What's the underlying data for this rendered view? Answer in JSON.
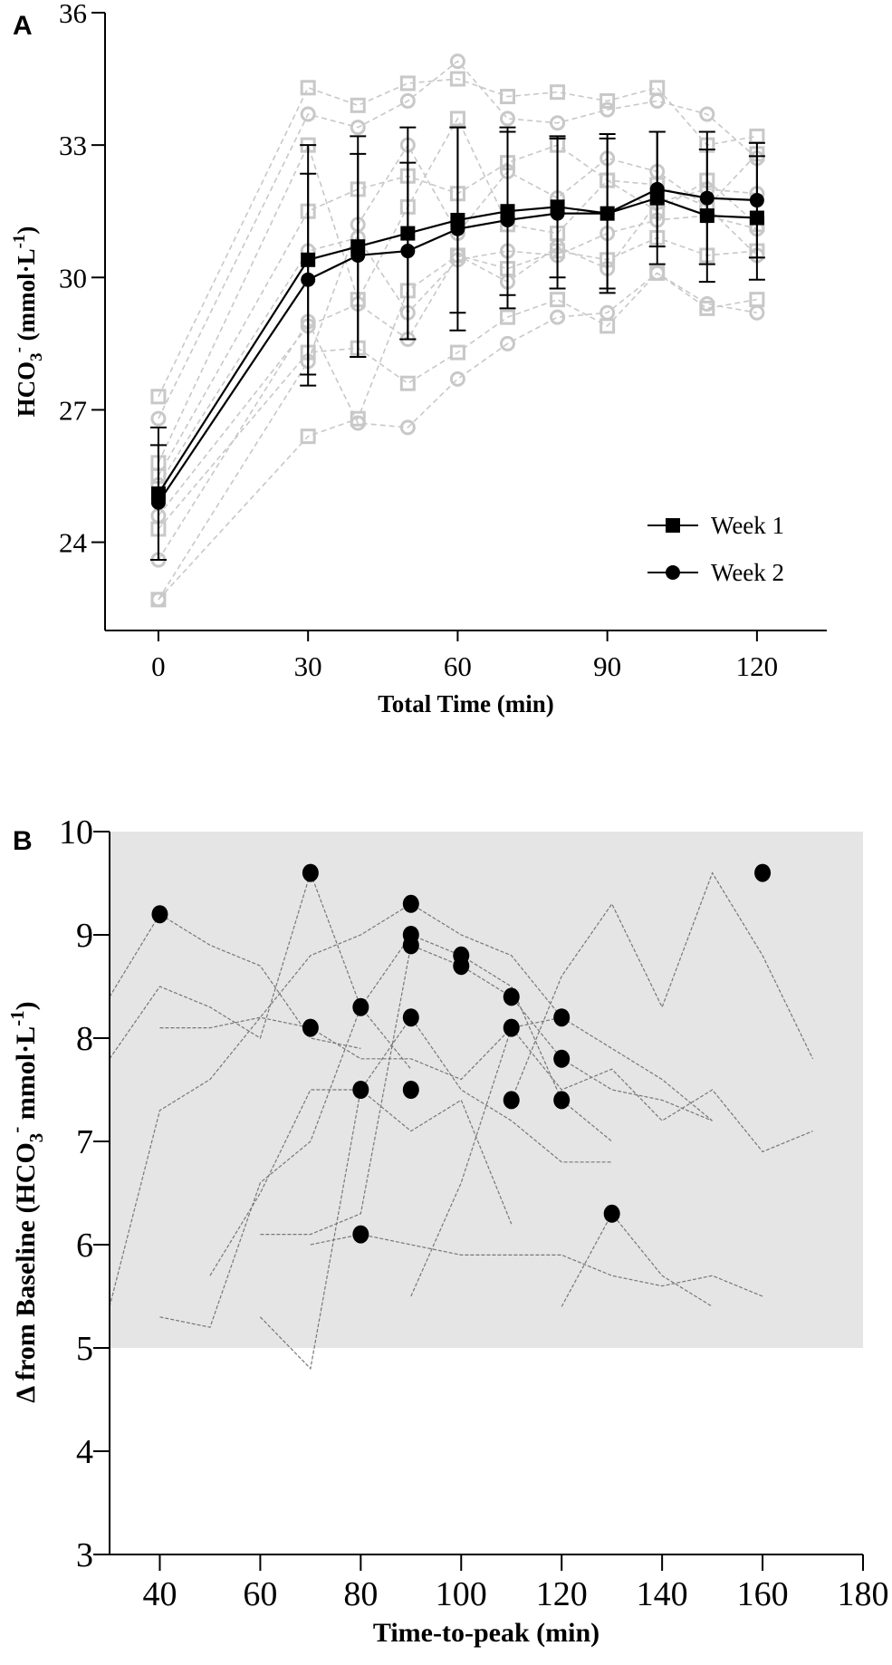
{
  "chart_data": [
    {
      "panel": "A",
      "type": "line",
      "xlabel": "Total Time (min)",
      "ylabel": "HCO3- (mmol·L-1)",
      "ylabel_parts": {
        "main": "HCO",
        "sub": "3",
        "sup": "-",
        "unit": " (mmol·L",
        "unit_sup": "-1",
        "close": ")"
      },
      "xlim": [
        -10.7,
        134
      ],
      "ylim": [
        22,
        36
      ],
      "xticks": [
        0,
        30,
        60,
        90,
        120
      ],
      "yticks": [
        24,
        27,
        30,
        33,
        36
      ],
      "legend_position": "lower-right",
      "x": [
        0,
        30,
        40,
        50,
        60,
        70,
        80,
        90,
        100,
        110,
        120
      ],
      "series": [
        {
          "name": "Week 1",
          "marker": "square",
          "values": [
            25.1,
            30.4,
            30.7,
            31.0,
            31.3,
            31.5,
            31.6,
            31.45,
            31.8,
            31.4,
            31.35
          ],
          "sd": [
            1.5,
            2.6,
            2.5,
            2.4,
            2.1,
            1.9,
            1.6,
            1.8,
            1.5,
            1.5,
            1.4
          ]
        },
        {
          "name": "Week 2",
          "marker": "circle",
          "values": [
            24.9,
            29.95,
            30.5,
            30.6,
            31.1,
            31.3,
            31.45,
            31.45,
            32.0,
            31.8,
            31.75
          ],
          "sd": [
            1.3,
            2.4,
            2.3,
            2.0,
            2.3,
            2.0,
            1.7,
            1.7,
            1.3,
            1.5,
            1.3
          ]
        }
      ],
      "individual_traces_approx": [
        {
          "marker": "square",
          "values": [
            27.3,
            34.3,
            33.9,
            34.4,
            34.5,
            34.1,
            34.2,
            34.0,
            34.3,
            33.0,
            33.2
          ]
        },
        {
          "marker": "square",
          "values": [
            25.5,
            31.5,
            32.0,
            32.3,
            31.9,
            32.6,
            33.0,
            32.2,
            32.1,
            31.6,
            32.8
          ]
        },
        {
          "marker": "square",
          "values": [
            24.3,
            28.3,
            28.4,
            27.6,
            28.3,
            29.1,
            29.5,
            28.9,
            30.1,
            29.3,
            29.5
          ]
        },
        {
          "marker": "square",
          "values": [
            22.7,
            26.4,
            26.8,
            29.7,
            30.5,
            30.2,
            30.6,
            30.4,
            30.9,
            30.5,
            30.6
          ]
        },
        {
          "marker": "square",
          "values": [
            25.8,
            33.0,
            29.5,
            31.6,
            33.6,
            31.2,
            31.0,
            32.2,
            31.5,
            32.2,
            31.2
          ]
        },
        {
          "marker": "circle",
          "values": [
            26.8,
            33.7,
            33.4,
            34.0,
            34.9,
            33.6,
            33.5,
            33.8,
            34.0,
            33.7,
            32.7
          ]
        },
        {
          "marker": "circle",
          "values": [
            25.3,
            30.6,
            30.9,
            29.2,
            30.4,
            30.6,
            30.5,
            31.0,
            31.3,
            31.4,
            31.1
          ]
        },
        {
          "marker": "circle",
          "values": [
            23.6,
            29.0,
            26.7,
            26.6,
            27.7,
            28.5,
            29.1,
            29.2,
            30.1,
            29.4,
            29.2
          ]
        },
        {
          "marker": "circle",
          "values": [
            24.6,
            28.9,
            29.4,
            28.6,
            30.5,
            29.9,
            30.7,
            30.2,
            31.7,
            32.0,
            31.9
          ]
        },
        {
          "marker": "circle",
          "values": [
            22.7,
            28.1,
            31.2,
            33.0,
            31.0,
            32.4,
            31.8,
            32.7,
            32.4,
            31.6,
            30.5
          ]
        }
      ]
    },
    {
      "panel": "B",
      "type": "scatter",
      "xlabel": "Time-to-peak (min)",
      "ylabel": "Δ from Baseline (HCO3- mmol·L-1)",
      "ylabel_parts": {
        "main": "Δ from Baseline (HCO",
        "sub": "3",
        "sup": "-",
        "unit": " mmol·L",
        "unit_sup": "-1",
        "close": ")"
      },
      "xlim": [
        30,
        180
      ],
      "ylim": [
        3,
        10
      ],
      "xticks": [
        40,
        60,
        80,
        100,
        120,
        140,
        160,
        180
      ],
      "yticks": [
        3,
        4,
        5,
        6,
        7,
        8,
        9,
        10
      ],
      "shaded_band": [
        5,
        10
      ],
      "peaks": [
        {
          "x": 40,
          "y": 9.2
        },
        {
          "x": 70,
          "y": 9.6
        },
        {
          "x": 70,
          "y": 8.1
        },
        {
          "x": 80,
          "y": 8.3
        },
        {
          "x": 80,
          "y": 7.5
        },
        {
          "x": 80,
          "y": 6.1
        },
        {
          "x": 90,
          "y": 9.3
        },
        {
          "x": 90,
          "y": 9.0
        },
        {
          "x": 90,
          "y": 8.9
        },
        {
          "x": 90,
          "y": 8.2
        },
        {
          "x": 90,
          "y": 7.5
        },
        {
          "x": 100,
          "y": 8.8
        },
        {
          "x": 100,
          "y": 8.7
        },
        {
          "x": 110,
          "y": 8.4
        },
        {
          "x": 110,
          "y": 8.1
        },
        {
          "x": 110,
          "y": 7.4
        },
        {
          "x": 120,
          "y": 8.2
        },
        {
          "x": 120,
          "y": 7.8
        },
        {
          "x": 120,
          "y": 7.4
        },
        {
          "x": 130,
          "y": 6.3
        },
        {
          "x": 160,
          "y": 9.6
        }
      ],
      "individual_traces_approx": [
        [
          [
            30,
            8.4
          ],
          [
            40,
            9.2
          ],
          [
            50,
            8.9
          ],
          [
            60,
            8.7
          ],
          [
            70,
            8.0
          ],
          [
            80,
            7.9
          ]
        ],
        [
          [
            30,
            7.8
          ],
          [
            40,
            8.5
          ],
          [
            50,
            8.3
          ],
          [
            60,
            8.0
          ],
          [
            70,
            9.6
          ],
          [
            80,
            8.3
          ],
          [
            90,
            7.7
          ]
        ],
        [
          [
            30,
            5.4
          ],
          [
            40,
            7.3
          ],
          [
            50,
            7.6
          ],
          [
            60,
            8.2
          ],
          [
            70,
            8.8
          ],
          [
            80,
            9.0
          ],
          [
            90,
            9.3
          ],
          [
            100,
            9.0
          ],
          [
            110,
            8.8
          ],
          [
            120,
            8.2
          ]
        ],
        [
          [
            40,
            8.1
          ],
          [
            50,
            8.1
          ],
          [
            60,
            8.2
          ],
          [
            70,
            8.1
          ],
          [
            80,
            7.8
          ],
          [
            90,
            7.8
          ],
          [
            100,
            7.6
          ],
          [
            110,
            8.1
          ],
          [
            120,
            8.2
          ],
          [
            130,
            7.9
          ],
          [
            140,
            7.6
          ],
          [
            150,
            7.2
          ]
        ],
        [
          [
            60,
            6.1
          ],
          [
            70,
            6.1
          ],
          [
            80,
            6.3
          ],
          [
            90,
            8.9
          ],
          [
            100,
            8.7
          ],
          [
            110,
            8.4
          ],
          [
            120,
            7.8
          ],
          [
            130,
            7.5
          ],
          [
            140,
            7.4
          ],
          [
            150,
            7.2
          ]
        ],
        [
          [
            40,
            5.3
          ],
          [
            50,
            5.2
          ],
          [
            60,
            6.6
          ],
          [
            70,
            7.0
          ],
          [
            80,
            8.3
          ],
          [
            90,
            9.0
          ],
          [
            100,
            8.8
          ],
          [
            110,
            8.5
          ],
          [
            120,
            7.4
          ],
          [
            130,
            7.0
          ]
        ],
        [
          [
            70,
            6.0
          ],
          [
            80,
            6.1
          ],
          [
            90,
            6.0
          ],
          [
            100,
            5.9
          ],
          [
            110,
            5.9
          ],
          [
            120,
            5.9
          ],
          [
            130,
            5.7
          ],
          [
            140,
            5.6
          ],
          [
            150,
            5.7
          ],
          [
            160,
            5.5
          ]
        ],
        [
          [
            120,
            5.4
          ],
          [
            130,
            6.3
          ],
          [
            140,
            5.7
          ],
          [
            150,
            5.4
          ]
        ],
        [
          [
            110,
            7.4
          ],
          [
            120,
            8.6
          ],
          [
            130,
            9.3
          ],
          [
            140,
            8.3
          ],
          [
            150,
            9.6
          ],
          [
            160,
            8.8
          ],
          [
            170,
            7.8
          ]
        ],
        [
          [
            90,
            5.5
          ],
          [
            100,
            6.6
          ],
          [
            110,
            8.1
          ],
          [
            120,
            7.5
          ],
          [
            130,
            7.7
          ],
          [
            140,
            7.2
          ],
          [
            150,
            7.5
          ],
          [
            160,
            6.9
          ],
          [
            170,
            7.1
          ]
        ],
        [
          [
            60,
            5.3
          ],
          [
            70,
            4.8
          ],
          [
            80,
            7.5
          ],
          [
            90,
            8.2
          ],
          [
            100,
            7.5
          ],
          [
            110,
            7.2
          ],
          [
            120,
            6.8
          ],
          [
            130,
            6.8
          ]
        ],
        [
          [
            50,
            5.7
          ],
          [
            60,
            6.5
          ],
          [
            70,
            7.5
          ],
          [
            80,
            7.5
          ],
          [
            90,
            7.1
          ],
          [
            100,
            7.4
          ],
          [
            110,
            6.2
          ]
        ]
      ]
    }
  ],
  "panels": {
    "a_label": "A",
    "b_label": "B"
  }
}
